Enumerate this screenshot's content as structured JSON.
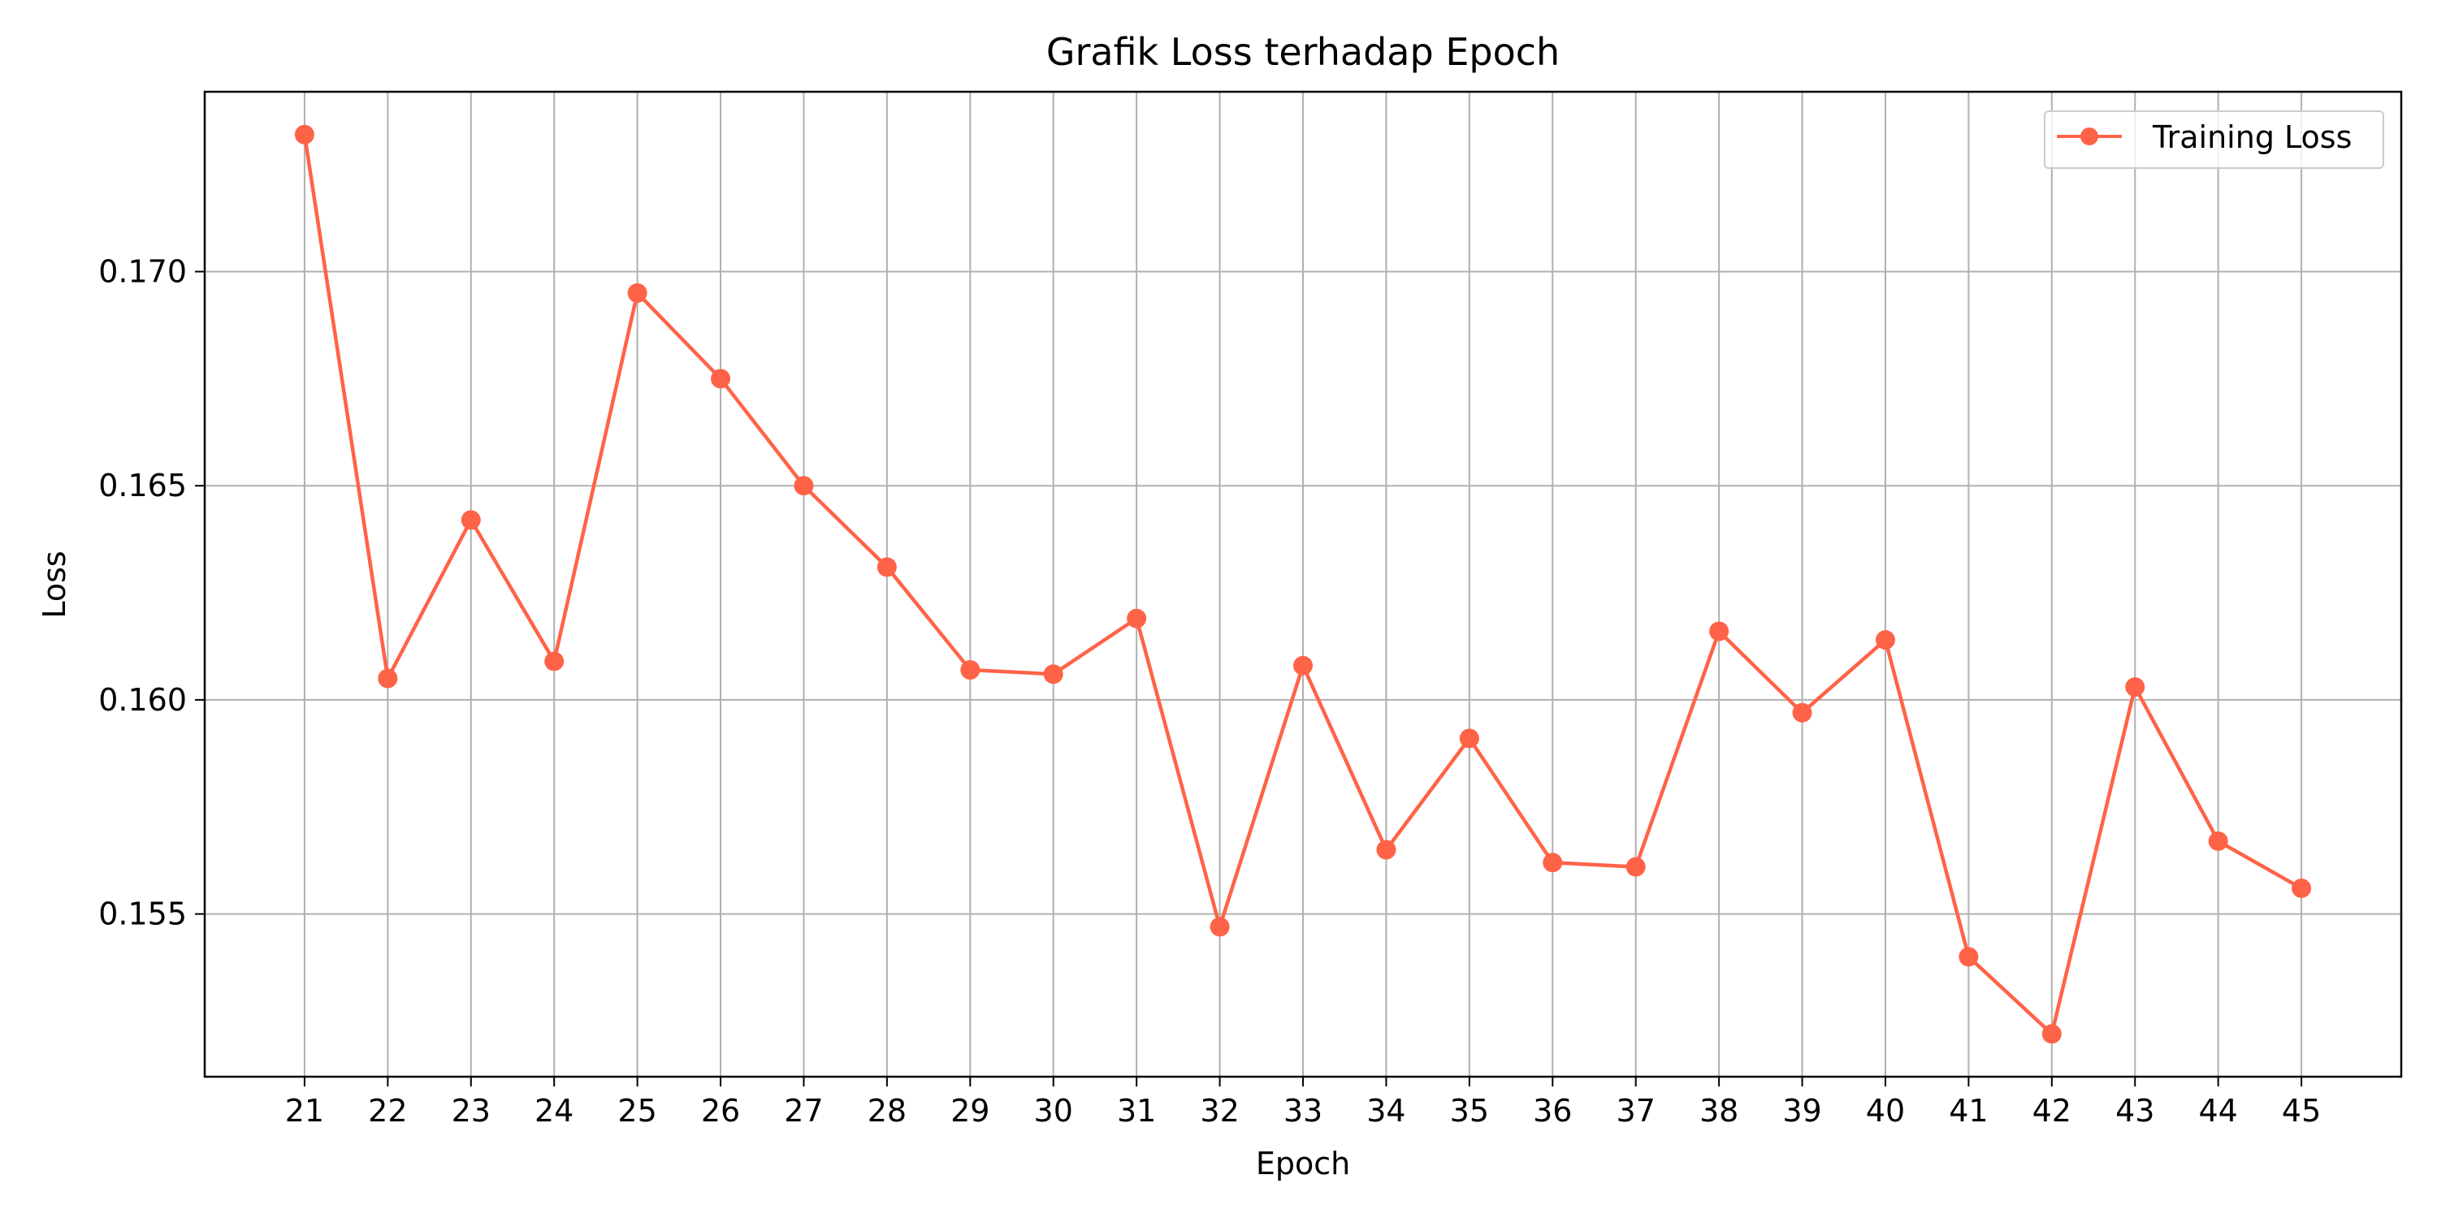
{
  "chart_data": {
    "type": "line",
    "title": "Grafik Loss terhadap Epoch",
    "xlabel": "Epoch",
    "ylabel": "Loss",
    "x": [
      21,
      22,
      23,
      24,
      25,
      26,
      27,
      28,
      29,
      30,
      31,
      32,
      33,
      34,
      35,
      36,
      37,
      38,
      39,
      40,
      41,
      42,
      43,
      44,
      45
    ],
    "xticks": [
      "21",
      "22",
      "23",
      "24",
      "25",
      "26",
      "27",
      "28",
      "29",
      "30",
      "31",
      "32",
      "33",
      "34",
      "35",
      "36",
      "37",
      "38",
      "39",
      "40",
      "41",
      "42",
      "43",
      "44",
      "45"
    ],
    "xlim": [
      19.8,
      46.2
    ],
    "ylim": [
      0.1512,
      0.1742
    ],
    "yticks": [
      0.155,
      0.16,
      0.165,
      0.17
    ],
    "ytick_labels": [
      "0.155",
      "0.160",
      "0.165",
      "0.170"
    ],
    "grid": true,
    "legend_position": "top-right",
    "series": [
      {
        "name": "Training Loss",
        "color": "#ff6347",
        "marker": "circle",
        "values": [
          0.1732,
          0.1605,
          0.1642,
          0.1609,
          0.1695,
          0.1675,
          0.165,
          0.1631,
          0.1607,
          0.1606,
          0.1619,
          0.1547,
          0.1608,
          0.1565,
          0.1591,
          0.1562,
          0.1561,
          0.1616,
          0.1597,
          0.1614,
          0.154,
          0.1522,
          0.1603,
          0.1567,
          0.1556
        ]
      }
    ],
    "colors": {
      "grid": "#b0b0b0",
      "axes": "#000000",
      "background": "#ffffff"
    }
  }
}
